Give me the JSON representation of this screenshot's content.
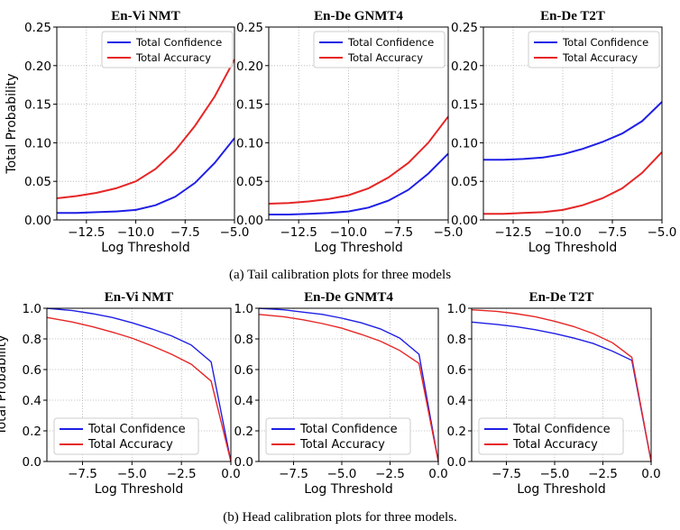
{
  "captions": {
    "tail": "(a)  Tail calibration plots for three models",
    "head": "(b)  Head calibration plots for three models."
  },
  "colors": {
    "confidence": "#1f1fe6",
    "accuracy": "#e62626"
  },
  "chart_data": [
    {
      "type": "line",
      "panel": "tail-1",
      "title": "En-Vi NMT",
      "xlabel": "Log Threshold",
      "ylabel": "Total Probability",
      "xlim": [
        -14,
        -5
      ],
      "ylim": [
        0,
        0.25
      ],
      "xticks": [
        -12.5,
        -10.0,
        -7.5,
        -5.0
      ],
      "yticks": [
        0.0,
        0.05,
        0.1,
        0.15,
        0.2,
        0.25
      ],
      "grid": true,
      "legend": "upper-left",
      "x": [
        -14,
        -13,
        -12,
        -11,
        -10,
        -9,
        -8,
        -7,
        -6,
        -5
      ],
      "series": [
        {
          "name": "Total Confidence",
          "values": [
            0.009,
            0.009,
            0.01,
            0.011,
            0.013,
            0.019,
            0.03,
            0.048,
            0.074,
            0.106
          ]
        },
        {
          "name": "Total Accuracy",
          "values": [
            0.028,
            0.031,
            0.035,
            0.041,
            0.05,
            0.066,
            0.09,
            0.122,
            0.16,
            0.208
          ]
        }
      ]
    },
    {
      "type": "line",
      "panel": "tail-2",
      "title": "En-De GNMT4",
      "xlabel": "Log Threshold",
      "ylabel": "",
      "xlim": [
        -14,
        -5
      ],
      "ylim": [
        0,
        0.25
      ],
      "xticks": [
        -12.5,
        -10.0,
        -7.5,
        -5.0
      ],
      "yticks": [
        0.0,
        0.05,
        0.1,
        0.15,
        0.2,
        0.25
      ],
      "grid": true,
      "legend": "upper-left",
      "x": [
        -14,
        -13,
        -12,
        -11,
        -10,
        -9,
        -8,
        -7,
        -6,
        -5
      ],
      "series": [
        {
          "name": "Total Confidence",
          "values": [
            0.007,
            0.007,
            0.008,
            0.009,
            0.011,
            0.016,
            0.025,
            0.039,
            0.06,
            0.086
          ]
        },
        {
          "name": "Total Accuracy",
          "values": [
            0.021,
            0.022,
            0.024,
            0.027,
            0.032,
            0.041,
            0.055,
            0.074,
            0.1,
            0.134
          ]
        }
      ]
    },
    {
      "type": "line",
      "panel": "tail-3",
      "title": "En-De T2T",
      "xlabel": "Log Threshold",
      "ylabel": "",
      "xlim": [
        -14,
        -5
      ],
      "ylim": [
        0,
        0.25
      ],
      "xticks": [
        -12.5,
        -10.0,
        -7.5,
        -5.0
      ],
      "yticks": [
        0.0,
        0.05,
        0.1,
        0.15,
        0.2,
        0.25
      ],
      "grid": true,
      "legend": "upper-left",
      "x": [
        -14,
        -13,
        -12,
        -11,
        -10,
        -9,
        -8,
        -7,
        -6,
        -5
      ],
      "series": [
        {
          "name": "Total Confidence",
          "values": [
            0.078,
            0.078,
            0.079,
            0.081,
            0.085,
            0.092,
            0.101,
            0.112,
            0.128,
            0.153
          ]
        },
        {
          "name": "Total Accuracy",
          "values": [
            0.008,
            0.008,
            0.009,
            0.01,
            0.013,
            0.019,
            0.028,
            0.041,
            0.061,
            0.088
          ]
        }
      ]
    },
    {
      "type": "line",
      "panel": "head-1",
      "title": "En-Vi NMT",
      "xlabel": "Log Threshold",
      "ylabel": "Total Probability",
      "xlim": [
        -9.3,
        0
      ],
      "ylim": [
        0,
        1.0
      ],
      "xticks": [
        -7.5,
        -5.0,
        -2.5,
        0.0
      ],
      "yticks": [
        0.0,
        0.2,
        0.4,
        0.6,
        0.8,
        1.0
      ],
      "grid": true,
      "legend": "lower-left",
      "x": [
        -9.3,
        -8,
        -7,
        -6,
        -5,
        -4,
        -3,
        -2,
        -1,
        0
      ],
      "series": [
        {
          "name": "Total Confidence",
          "values": [
            1.0,
            0.985,
            0.965,
            0.94,
            0.905,
            0.865,
            0.82,
            0.76,
            0.65,
            0.0
          ]
        },
        {
          "name": "Total Accuracy",
          "values": [
            0.94,
            0.91,
            0.88,
            0.845,
            0.805,
            0.755,
            0.7,
            0.635,
            0.525,
            0.0
          ]
        }
      ]
    },
    {
      "type": "line",
      "panel": "head-2",
      "title": "En-De GNMT4",
      "xlabel": "Log Threshold",
      "ylabel": "",
      "xlim": [
        -9.3,
        0
      ],
      "ylim": [
        0,
        1.0
      ],
      "xticks": [
        -7.5,
        -5.0,
        -2.5,
        0.0
      ],
      "yticks": [
        0.0,
        0.2,
        0.4,
        0.6,
        0.8,
        1.0
      ],
      "grid": true,
      "legend": "lower-left",
      "x": [
        -9.3,
        -8,
        -7,
        -6,
        -5,
        -4,
        -3,
        -2,
        -1,
        0
      ],
      "series": [
        {
          "name": "Total Confidence",
          "values": [
            1.0,
            0.99,
            0.975,
            0.96,
            0.935,
            0.905,
            0.865,
            0.805,
            0.7,
            0.0
          ]
        },
        {
          "name": "Total Accuracy",
          "values": [
            0.96,
            0.945,
            0.925,
            0.9,
            0.87,
            0.83,
            0.785,
            0.725,
            0.64,
            0.0
          ]
        }
      ]
    },
    {
      "type": "line",
      "panel": "head-3",
      "title": "En-De T2T",
      "xlabel": "Log Threshold",
      "ylabel": "",
      "xlim": [
        -9.3,
        0
      ],
      "ylim": [
        0,
        1.0
      ],
      "xticks": [
        -7.5,
        -5.0,
        -2.5,
        0.0
      ],
      "yticks": [
        0.0,
        0.2,
        0.4,
        0.6,
        0.8,
        1.0
      ],
      "grid": true,
      "legend": "lower-left",
      "x": [
        -9.3,
        -8,
        -7,
        -6,
        -5,
        -4,
        -3,
        -2,
        -1,
        0
      ],
      "series": [
        {
          "name": "Total Confidence",
          "values": [
            0.91,
            0.895,
            0.88,
            0.86,
            0.835,
            0.805,
            0.77,
            0.72,
            0.66,
            0.0
          ]
        },
        {
          "name": "Total Accuracy",
          "values": [
            0.99,
            0.98,
            0.965,
            0.945,
            0.915,
            0.88,
            0.835,
            0.775,
            0.68,
            0.0
          ]
        }
      ]
    }
  ]
}
